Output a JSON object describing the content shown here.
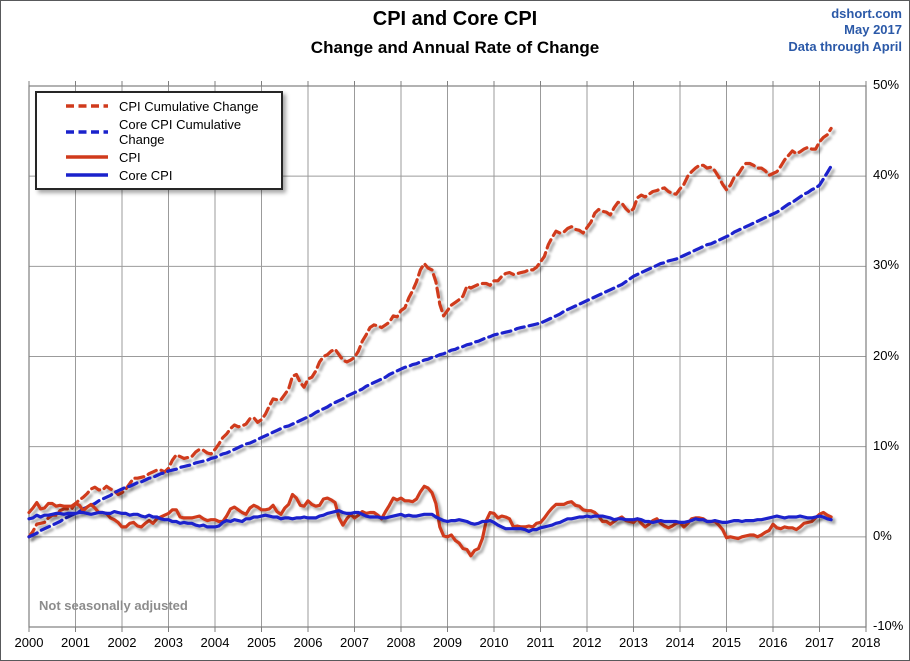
{
  "header": {
    "source": "dshort.com",
    "source_date": "May 2017",
    "source_note": "Data through April",
    "source_color": "#2b59a8"
  },
  "footnote": "Not seasonally adjusted",
  "chart_data": {
    "type": "line",
    "title": "CPI and Core CPI",
    "subtitle": "Change and Annual Rate of Change",
    "grid": true,
    "legend_position": "top-left",
    "ylim": [
      -10,
      50
    ],
    "y_ticks": [
      "50%",
      "40%",
      "30%",
      "20%",
      "10%",
      "0%",
      "-10%"
    ],
    "x_ticks": [
      "2000",
      "2001",
      "2002",
      "2003",
      "2004",
      "2005",
      "2006",
      "2007",
      "2008",
      "2009",
      "2010",
      "2011",
      "2012",
      "2013",
      "2014",
      "2015",
      "2016",
      "2017",
      "2018"
    ],
    "x_axis_span_years": 18,
    "data_start": "2000-01",
    "data_end": "2017-04",
    "zero_line_color": "#000000",
    "grid_color": "#9b9b9b",
    "series": [
      {
        "name": "CPI Cumulative Change",
        "color": "#d03a1c",
        "style": "dashed",
        "values": [
          0.0,
          0.6,
          1.4,
          1.5,
          1.6,
          2.1,
          2.4,
          2.4,
          2.9,
          3.1,
          3.1,
          3.1,
          3.7,
          4.1,
          4.4,
          4.8,
          5.3,
          5.5,
          5.2,
          5.2,
          5.6,
          5.3,
          5.1,
          4.7,
          4.9,
          5.3,
          5.9,
          6.5,
          6.5,
          6.6,
          6.7,
          7.0,
          7.2,
          7.4,
          7.4,
          7.2,
          7.6,
          8.5,
          9.1,
          8.9,
          8.7,
          8.8,
          8.9,
          9.4,
          9.7,
          9.6,
          9.3,
          9.2,
          9.7,
          10.3,
          11.0,
          11.4,
          12.0,
          12.4,
          12.2,
          12.3,
          12.5,
          13.1,
          13.2,
          12.7,
          13.0,
          13.6,
          14.5,
          15.3,
          15.2,
          15.2,
          15.8,
          16.4,
          17.8,
          18.0,
          17.1,
          16.6,
          17.5,
          17.7,
          18.4,
          19.4,
          20.0,
          20.2,
          20.6,
          20.8,
          20.2,
          19.6,
          19.4,
          19.6,
          19.9,
          20.6,
          21.7,
          22.4,
          23.2,
          23.5,
          23.4,
          23.2,
          23.5,
          23.8,
          24.5,
          24.4,
          25.1,
          25.4,
          26.5,
          27.3,
          28.3,
          29.6,
          30.3,
          29.8,
          29.6,
          28.3,
          25.8,
          24.5,
          25.1,
          25.7,
          26.0,
          26.3,
          26.7,
          27.8,
          27.6,
          27.8,
          28.0,
          28.1,
          28.1,
          27.9,
          28.4,
          28.4,
          28.9,
          29.2,
          29.3,
          29.1,
          29.2,
          29.3,
          29.4,
          29.6,
          29.6,
          29.9,
          30.5,
          31.1,
          32.4,
          33.2,
          33.9,
          33.7,
          33.8,
          34.2,
          34.4,
          34.1,
          34.0,
          33.7,
          34.3,
          34.9,
          35.9,
          36.3,
          36.1,
          36.0,
          35.7,
          36.5,
          37.1,
          37.0,
          36.4,
          36.0,
          36.4,
          37.6,
          37.9,
          37.7,
          38.0,
          38.3,
          38.4,
          38.6,
          38.7,
          38.3,
          38.1,
          38.0,
          38.6,
          39.1,
          40.0,
          40.5,
          40.9,
          41.2,
          41.2,
          40.9,
          41.0,
          40.6,
          39.9,
          39.1,
          38.5,
          39.0,
          39.9,
          40.2,
          40.9,
          41.4,
          41.4,
          41.2,
          40.9,
          40.9,
          40.6,
          40.1,
          40.3,
          40.5,
          41.1,
          41.8,
          42.3,
          42.8,
          42.5,
          42.7,
          43.0,
          43.2,
          43.0,
          43.0,
          43.8,
          44.3,
          44.6,
          45.3
        ]
      },
      {
        "name": "Core CPI Cumulative Change",
        "color": "#1a22cc",
        "style": "dashed",
        "values": [
          0.0,
          0.2,
          0.4,
          0.7,
          0.9,
          1.1,
          1.3,
          1.5,
          1.7,
          2.0,
          2.2,
          2.4,
          2.6,
          2.8,
          3.1,
          3.3,
          3.5,
          3.7,
          4.0,
          4.2,
          4.4,
          4.6,
          4.9,
          5.1,
          5.3,
          5.5,
          5.6,
          5.8,
          6.0,
          6.1,
          6.3,
          6.5,
          6.6,
          6.8,
          7.0,
          7.1,
          7.3,
          7.4,
          7.5,
          7.7,
          7.8,
          7.9,
          8.0,
          8.2,
          8.3,
          8.4,
          8.5,
          8.7,
          8.8,
          9.0,
          9.2,
          9.3,
          9.5,
          9.7,
          9.9,
          10.1,
          10.3,
          10.4,
          10.6,
          10.8,
          11.0,
          11.2,
          11.4,
          11.6,
          11.8,
          12.0,
          12.2,
          12.3,
          12.5,
          12.7,
          12.9,
          13.1,
          13.3,
          13.5,
          13.8,
          14.0,
          14.2,
          14.4,
          14.7,
          14.9,
          15.1,
          15.3,
          15.6,
          15.8,
          16.0,
          16.2,
          16.4,
          16.7,
          16.9,
          17.1,
          17.3,
          17.5,
          17.7,
          18.0,
          18.2,
          18.4,
          18.6,
          18.8,
          18.9,
          19.1,
          19.2,
          19.4,
          19.6,
          19.7,
          19.9,
          20.0,
          20.2,
          20.3,
          20.5,
          20.7,
          20.8,
          21.0,
          21.1,
          21.3,
          21.4,
          21.6,
          21.7,
          21.9,
          22.1,
          22.2,
          22.4,
          22.5,
          22.6,
          22.7,
          22.8,
          22.9,
          23.1,
          23.2,
          23.3,
          23.4,
          23.5,
          23.6,
          23.7,
          23.9,
          24.1,
          24.3,
          24.5,
          24.7,
          25.0,
          25.2,
          25.4,
          25.6,
          25.8,
          26.0,
          26.2,
          26.4,
          26.6,
          26.8,
          27.0,
          27.2,
          27.4,
          27.6,
          27.8,
          28.0,
          28.3,
          28.6,
          28.9,
          29.1,
          29.3,
          29.5,
          29.7,
          29.9,
          30.1,
          30.3,
          30.4,
          30.6,
          30.7,
          30.8,
          31.0,
          31.2,
          31.4,
          31.6,
          31.8,
          32.0,
          32.2,
          32.4,
          32.5,
          32.7,
          32.9,
          33.1,
          33.3,
          33.5,
          33.8,
          34.0,
          34.2,
          34.4,
          34.6,
          34.8,
          35.0,
          35.2,
          35.4,
          35.6,
          35.8,
          36.0,
          36.3,
          36.6,
          36.9,
          37.1,
          37.4,
          37.7,
          38.0,
          38.2,
          38.5,
          38.7,
          39.0,
          39.7,
          40.4,
          41.1
        ]
      },
      {
        "name": "CPI",
        "color": "#d03a1c",
        "style": "solid",
        "values": [
          2.7,
          3.2,
          3.8,
          3.1,
          3.2,
          3.7,
          3.7,
          3.4,
          3.5,
          3.4,
          3.4,
          3.4,
          3.7,
          3.5,
          2.9,
          3.3,
          3.6,
          3.2,
          2.7,
          2.7,
          2.6,
          2.1,
          1.9,
          1.6,
          1.1,
          1.1,
          1.5,
          1.6,
          1.2,
          1.1,
          1.5,
          1.8,
          1.5,
          2.0,
          2.2,
          2.4,
          2.6,
          3.0,
          3.0,
          2.2,
          2.1,
          2.1,
          2.1,
          2.2,
          2.3,
          2.0,
          1.8,
          1.9,
          1.9,
          1.7,
          1.7,
          2.3,
          3.1,
          3.3,
          3.0,
          2.7,
          2.5,
          3.2,
          3.5,
          3.3,
          3.0,
          3.0,
          3.1,
          3.5,
          2.8,
          2.5,
          3.2,
          3.6,
          4.7,
          4.3,
          3.5,
          3.4,
          4.0,
          3.6,
          3.4,
          3.5,
          4.2,
          4.3,
          4.1,
          3.8,
          2.1,
          1.3,
          2.0,
          2.5,
          2.1,
          2.4,
          2.8,
          2.6,
          2.7,
          2.7,
          2.4,
          2.0,
          2.8,
          3.5,
          4.3,
          4.1,
          4.3,
          4.0,
          4.0,
          3.9,
          4.2,
          5.0,
          5.6,
          5.4,
          4.9,
          3.7,
          1.1,
          0.1,
          0.0,
          0.2,
          -0.4,
          -0.7,
          -1.3,
          -1.4,
          -2.1,
          -1.5,
          -1.3,
          -0.2,
          1.8,
          2.7,
          2.6,
          2.1,
          2.3,
          2.2,
          2.0,
          1.1,
          1.2,
          1.1,
          1.1,
          1.2,
          1.1,
          1.5,
          1.6,
          2.1,
          2.7,
          3.2,
          3.6,
          3.6,
          3.6,
          3.8,
          3.9,
          3.5,
          3.4,
          3.0,
          2.9,
          2.9,
          2.7,
          2.3,
          1.7,
          1.7,
          1.4,
          1.7,
          2.0,
          2.2,
          1.8,
          1.7,
          1.6,
          2.0,
          1.5,
          1.1,
          1.4,
          1.8,
          2.0,
          1.5,
          1.2,
          1.0,
          1.2,
          1.5,
          1.6,
          1.1,
          1.5,
          2.0,
          2.1,
          2.1,
          2.0,
          1.7,
          1.7,
          1.7,
          1.3,
          0.8,
          -0.1,
          0.0,
          -0.1,
          -0.2,
          0.0,
          0.1,
          0.2,
          0.2,
          0.0,
          0.2,
          0.5,
          0.7,
          1.4,
          1.0,
          0.9,
          1.1,
          1.0,
          1.0,
          0.8,
          1.1,
          1.5,
          1.6,
          1.7,
          2.1,
          2.5,
          2.7,
          2.4,
          2.2
        ]
      },
      {
        "name": "Core CPI",
        "color": "#1a22cc",
        "style": "solid",
        "values": [
          2.0,
          2.1,
          2.4,
          2.2,
          2.4,
          2.4,
          2.5,
          2.6,
          2.6,
          2.5,
          2.6,
          2.6,
          2.6,
          2.7,
          2.7,
          2.6,
          2.5,
          2.6,
          2.7,
          2.7,
          2.6,
          2.6,
          2.8,
          2.7,
          2.6,
          2.6,
          2.4,
          2.5,
          2.5,
          2.3,
          2.2,
          2.4,
          2.2,
          2.2,
          2.0,
          1.9,
          1.9,
          1.7,
          1.7,
          1.5,
          1.6,
          1.5,
          1.5,
          1.3,
          1.2,
          1.3,
          1.1,
          1.1,
          1.1,
          1.2,
          1.6,
          1.8,
          1.7,
          1.9,
          1.8,
          1.7,
          2.0,
          2.0,
          2.2,
          2.2,
          2.3,
          2.4,
          2.3,
          2.2,
          2.2,
          2.0,
          2.1,
          2.1,
          2.0,
          2.1,
          2.1,
          2.2,
          2.1,
          2.1,
          2.1,
          2.3,
          2.4,
          2.6,
          2.7,
          2.8,
          2.9,
          2.7,
          2.6,
          2.6,
          2.7,
          2.7,
          2.5,
          2.3,
          2.2,
          2.2,
          2.2,
          2.1,
          2.1,
          2.2,
          2.3,
          2.4,
          2.5,
          2.3,
          2.4,
          2.3,
          2.3,
          2.4,
          2.5,
          2.5,
          2.5,
          2.2,
          2.0,
          1.8,
          1.7,
          1.8,
          1.8,
          1.9,
          1.8,
          1.7,
          1.5,
          1.4,
          1.5,
          1.7,
          1.7,
          1.8,
          1.6,
          1.3,
          1.1,
          0.9,
          0.9,
          0.9,
          0.9,
          0.9,
          0.8,
          0.6,
          0.8,
          0.8,
          1.0,
          1.1,
          1.2,
          1.3,
          1.5,
          1.6,
          1.8,
          2.0,
          2.0,
          2.1,
          2.2,
          2.2,
          2.3,
          2.2,
          2.3,
          2.3,
          2.3,
          2.2,
          2.1,
          1.9,
          2.0,
          2.0,
          1.9,
          1.9,
          1.9,
          2.0,
          1.9,
          1.7,
          1.7,
          1.6,
          1.7,
          1.8,
          1.7,
          1.7,
          1.7,
          1.7,
          1.6,
          1.6,
          1.7,
          1.8,
          2.0,
          1.9,
          1.9,
          1.7,
          1.7,
          1.8,
          1.7,
          1.6,
          1.6,
          1.7,
          1.8,
          1.8,
          1.7,
          1.8,
          1.8,
          1.8,
          1.9,
          1.9,
          2.0,
          2.1,
          2.2,
          2.3,
          2.2,
          2.1,
          2.2,
          2.2,
          2.2,
          2.3,
          2.2,
          2.1,
          2.1,
          2.2,
          2.3,
          2.2,
          2.0,
          1.9
        ]
      }
    ]
  }
}
